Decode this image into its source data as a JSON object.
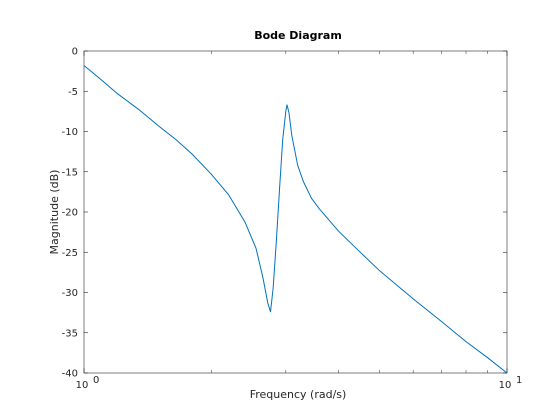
{
  "chart_data": {
    "type": "line",
    "title": "Bode Diagram",
    "xlabel": "Frequency  (rad/s)",
    "ylabel": "Magnitude (dB)",
    "xscale": "log",
    "xlim": [
      1,
      10
    ],
    "ylim": [
      -40,
      0
    ],
    "grid": false,
    "legend": "none",
    "line_color": "#0072BD",
    "axis_color": "#262626",
    "yticks": [
      0,
      -5,
      -10,
      -15,
      -20,
      -25,
      -30,
      -35,
      -40
    ],
    "yticklabels": [
      "0",
      "-5",
      "-10",
      "-15",
      "-20",
      "-25",
      "-30",
      "-35",
      "-40"
    ],
    "xticks": [
      {
        "value": 1,
        "base": "10",
        "exp": "0"
      },
      {
        "value": 10,
        "base": "10",
        "exp": "1"
      }
    ],
    "series": [
      {
        "x": [
          1.0,
          1.1,
          1.2,
          1.35,
          1.5,
          1.65,
          1.8,
          2.0,
          2.2,
          2.4,
          2.55,
          2.65,
          2.72,
          2.76,
          2.8,
          2.85,
          2.9,
          2.95,
          3.0,
          3.02,
          3.05,
          3.1,
          3.2,
          3.3,
          3.45,
          3.6,
          4.0,
          4.5,
          5.0,
          6.0,
          7.0,
          8.0,
          9.0,
          10.0
        ],
        "y": [
          -1.8,
          -3.6,
          -5.3,
          -7.3,
          -9.3,
          -11.0,
          -12.8,
          -15.3,
          -17.9,
          -21.2,
          -24.5,
          -28.2,
          -31.3,
          -32.4,
          -29.5,
          -23.5,
          -17.0,
          -11.0,
          -7.5,
          -6.7,
          -7.6,
          -10.5,
          -14.2,
          -16.2,
          -18.3,
          -19.6,
          -22.4,
          -25.0,
          -27.3,
          -30.8,
          -33.6,
          -36.1,
          -38.1,
          -40.0
        ]
      }
    ]
  }
}
